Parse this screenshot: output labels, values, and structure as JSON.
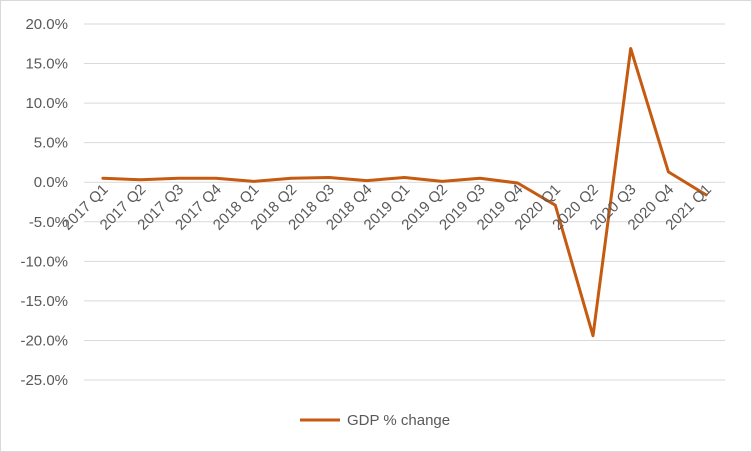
{
  "chart_data": {
    "type": "line",
    "title": "",
    "xlabel": "",
    "ylabel": "",
    "categories": [
      "2017 Q1",
      "2017 Q2",
      "2017 Q3",
      "2017 Q4",
      "2018 Q1",
      "2018 Q2",
      "2018 Q3",
      "2018 Q4",
      "2019 Q1",
      "2019 Q2",
      "2019 Q3",
      "2019 Q4",
      "2020 Q1",
      "2020 Q2",
      "2020 Q3",
      "2020 Q4",
      "2021 Q1"
    ],
    "series": [
      {
        "name": "GDP % change",
        "color": "#C55A11",
        "values": [
          0.5,
          0.3,
          0.5,
          0.5,
          0.1,
          0.5,
          0.6,
          0.2,
          0.6,
          0.1,
          0.5,
          -0.1,
          -2.9,
          -19.4,
          16.9,
          1.3,
          -1.6
        ]
      }
    ],
    "ylim": [
      -25,
      20
    ],
    "ytick_values": [
      20,
      15,
      10,
      5,
      0,
      -5,
      -10,
      -15,
      -20,
      -25
    ],
    "ytick_labels": [
      "20.0%",
      "15.0%",
      "10.0%",
      "5.0%",
      "0.0%",
      "-5.0%",
      "-10.0%",
      "-15.0%",
      "-20.0%",
      "-25.0%"
    ],
    "grid": true,
    "legend_position": "bottom"
  }
}
